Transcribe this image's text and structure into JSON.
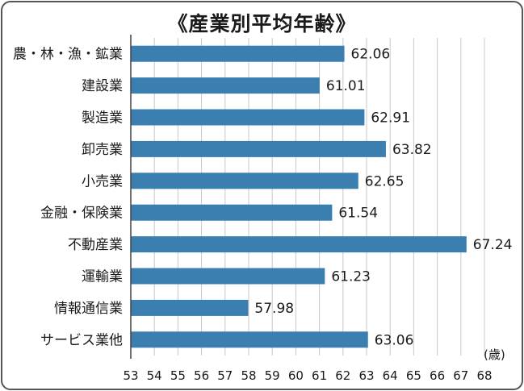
{
  "chart_data": {
    "type": "bar",
    "orientation": "horizontal",
    "title": "《産業別平均年齢》",
    "unit_label": "(歳)",
    "categories": [
      "農・林・漁・鉱業",
      "建設業",
      "製造業",
      "卸売業",
      "小売業",
      "金融・保険業",
      "不動産業",
      "運輸業",
      "情報通信業",
      "サービス業他"
    ],
    "values": [
      62.06,
      61.01,
      62.91,
      63.82,
      62.65,
      61.54,
      67.24,
      61.23,
      57.98,
      63.06
    ],
    "value_labels": [
      "62.06",
      "61.01",
      "62.91",
      "63.82",
      "62.65",
      "61.54",
      "67.24",
      "61.23",
      "57.98",
      "63.06"
    ],
    "xlim": [
      53,
      68
    ],
    "xticks": [
      "53",
      "54",
      "55",
      "56",
      "57",
      "58",
      "59",
      "60",
      "61",
      "62",
      "63",
      "64",
      "65",
      "66",
      "67",
      "68"
    ],
    "grid": true,
    "bar_color": "#3a7fb0"
  }
}
